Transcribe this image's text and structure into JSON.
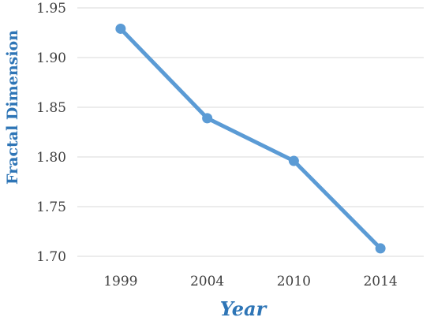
{
  "chart_data": {
    "type": "line",
    "title": "",
    "xlabel": "Year",
    "ylabel": "Fractal Dimension",
    "categories": [
      "1999",
      "2004",
      "2010",
      "2014"
    ],
    "series": [
      {
        "values": [
          1.929,
          1.839,
          1.796,
          1.708
        ]
      }
    ],
    "ylim": [
      1.7,
      1.95
    ],
    "yticks": [
      "1.70",
      "1.75",
      "1.80",
      "1.85",
      "1.90",
      "1.95"
    ],
    "grid": "horizontal",
    "legend": "none",
    "colors": {
      "line": "#5b9bd5",
      "axis_title": "#2e75b6",
      "grid": "#d9d9d9",
      "tick_text": "#404040"
    }
  }
}
